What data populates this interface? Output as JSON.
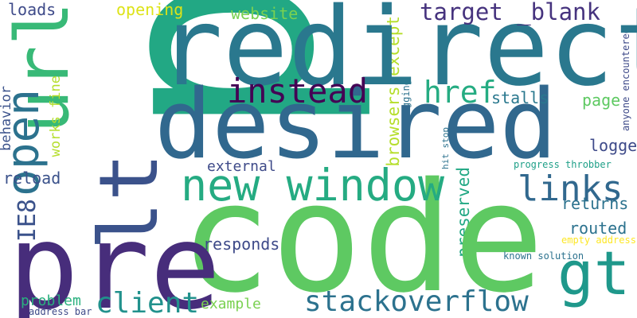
{
  "words": [
    {
      "text": "p",
      "color": "#22a884"
    },
    {
      "text": "code",
      "color": "#5ec962"
    },
    {
      "text": "redirect",
      "color": "#2a788e"
    },
    {
      "text": "desired",
      "color": "#31688e"
    },
    {
      "text": "lt",
      "color": "#3b528b"
    },
    {
      "text": "pre",
      "color": "#472d7b"
    },
    {
      "text": "url",
      "color": "#38b977"
    },
    {
      "text": "new window",
      "color": "#25ab82"
    },
    {
      "text": "gt",
      "color": "#1f988b"
    },
    {
      "text": "links",
      "color": "#31688e"
    },
    {
      "text": "stackoverflow",
      "color": "#2c728e"
    },
    {
      "text": "instead",
      "color": "#440154"
    },
    {
      "text": "href",
      "color": "#25ac82"
    },
    {
      "text": "open",
      "color": "#2c728e"
    },
    {
      "text": "client",
      "color": "#21918c"
    },
    {
      "text": "IE8",
      "color": "#3b528b"
    },
    {
      "text": "target _blank",
      "color": "#46337e"
    },
    {
      "text": "opening",
      "color": "#dde318"
    },
    {
      "text": "loads",
      "color": "#3e4a89"
    },
    {
      "text": "website",
      "color": "#7ad151"
    },
    {
      "text": "browsers except",
      "color": "#b5de2b"
    },
    {
      "text": "stalls",
      "color": "#2a788e"
    },
    {
      "text": "page",
      "color": "#5ec962"
    },
    {
      "text": "logger",
      "color": "#3e4a89"
    },
    {
      "text": "works fine",
      "color": "#b5de2b"
    },
    {
      "text": "behavior",
      "color": "#3b528b"
    },
    {
      "text": "external",
      "color": "#3e4a89"
    },
    {
      "text": "reload",
      "color": "#3b528b"
    },
    {
      "text": "returns",
      "color": "#2c728e"
    },
    {
      "text": "routed",
      "color": "#2c728e"
    },
    {
      "text": "responds",
      "color": "#3e4a89"
    },
    {
      "text": "preserved",
      "color": "#22a884"
    },
    {
      "text": "example",
      "color": "#7ad151"
    },
    {
      "text": "problem",
      "color": "#2ab07f"
    },
    {
      "text": "address bar",
      "color": "#3e4a89"
    },
    {
      "text": "based logging",
      "color": "#2c728e"
    },
    {
      "text": "hit stop",
      "color": "#2c728e"
    },
    {
      "text": "progress throbber",
      "color": "#1fa088"
    },
    {
      "text": "empty address",
      "color": "#fde725"
    },
    {
      "text": "known solution",
      "color": "#2c728e"
    },
    {
      "text": "anyone encountered",
      "color": "#3e4a89"
    }
  ]
}
